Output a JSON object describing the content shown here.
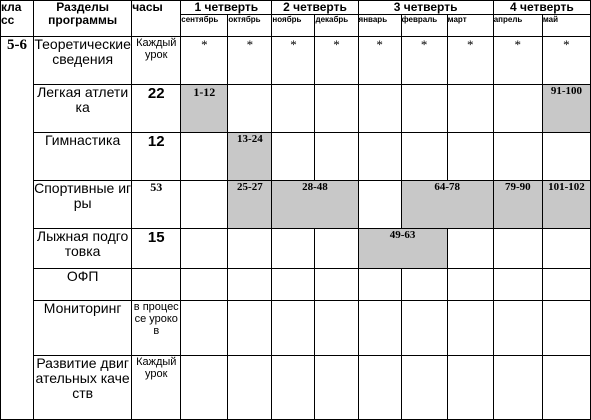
{
  "header": {
    "class_label": "кла сс",
    "sections_label": "Разделы программы",
    "hours_label": "часы",
    "quarters": [
      "1 четверть",
      "2 четверть",
      "3 четверть",
      "4 четверть"
    ],
    "months": [
      "сентябрь",
      "октябрь",
      "ноябрь",
      "декабрь",
      "январь",
      "февраль",
      "март",
      "апрель",
      "май"
    ]
  },
  "grade": "5-6",
  "rows": [
    {
      "section": "Теоретические сведения",
      "hours": "Каждый урок",
      "cells": [
        "*",
        "*",
        "*",
        "*",
        "*",
        "*",
        "*",
        "*",
        "*"
      ]
    },
    {
      "section": "Легкая атлетика",
      "hours": "22",
      "cells": [
        "1-12",
        "91-100"
      ]
    },
    {
      "section": "Гимнастика",
      "hours": "12",
      "cells": [
        "13-24"
      ]
    },
    {
      "section": "Спортивные игры",
      "hours": "53",
      "cells": [
        "25-27",
        "28-48",
        "64-78",
        "79-90",
        "101-102"
      ]
    },
    {
      "section": "Лыжная подготовка",
      "hours": "15",
      "cells": [
        "49-63"
      ]
    },
    {
      "section": "ОФП",
      "hours": "",
      "cells": []
    },
    {
      "section": "Мониторинг",
      "hours": "в процессе уроков",
      "cells": []
    },
    {
      "section": "Развитие двигательных качеств",
      "hours": "Каждый урок",
      "cells": []
    }
  ]
}
